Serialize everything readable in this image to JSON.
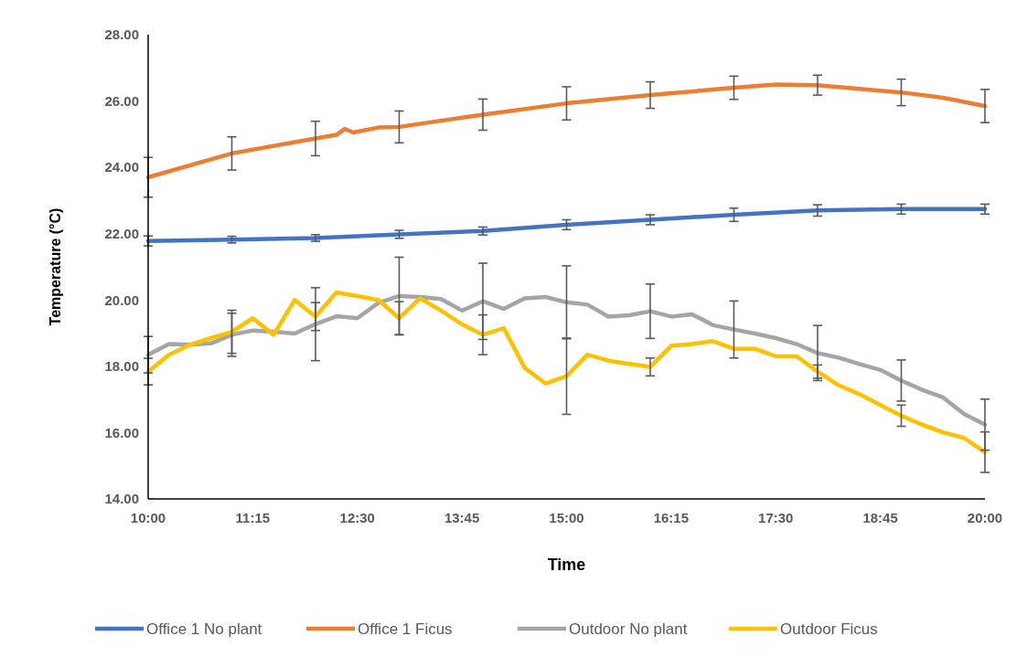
{
  "chart_data": {
    "type": "line",
    "xlabel": "Time",
    "ylabel": "Temperature (°C)",
    "legend": "bottom",
    "xlim": [
      10,
      20
    ],
    "xticks": [
      {
        "value": 10,
        "label": "10:00"
      },
      {
        "value": 11.25,
        "label": "11:15"
      },
      {
        "value": 12.5,
        "label": "12:30"
      },
      {
        "value": 13.75,
        "label": "13:45"
      },
      {
        "value": 15,
        "label": "15:00"
      },
      {
        "value": 16.25,
        "label": "16:15"
      },
      {
        "value": 17.5,
        "label": "17:30"
      },
      {
        "value": 18.75,
        "label": "18:45"
      },
      {
        "value": 20,
        "label": "20:00"
      }
    ],
    "ylim": [
      14,
      28
    ],
    "yticks": [
      {
        "value": 14,
        "label": "14.00"
      },
      {
        "value": 16,
        "label": "16.00"
      },
      {
        "value": 18,
        "label": "18.00"
      },
      {
        "value": 20,
        "label": "20.00"
      },
      {
        "value": 22,
        "label": "22.00"
      },
      {
        "value": 24,
        "label": "24.00"
      },
      {
        "value": 26,
        "label": "26.00"
      },
      {
        "value": 28,
        "label": "28.00"
      }
    ],
    "x": [
      10,
      10.25,
      10.5,
      10.75,
      11,
      11.25,
      11.5,
      11.75,
      12,
      12.25,
      12.5,
      12.75,
      13,
      13.25,
      13.5,
      13.75,
      14,
      14.25,
      14.5,
      14.75,
      15,
      15.25,
      15.5,
      15.75,
      16,
      16.25,
      16.5,
      16.75,
      17,
      17.25,
      17.5,
      17.75,
      18,
      18.25,
      18.5,
      18.75,
      19,
      19.25,
      19.5,
      19.75,
      20
    ],
    "series": [
      {
        "name": "Office 1 No plant",
        "color": "#4472c4",
        "x": [
          10,
          11,
          12,
          13,
          14,
          15,
          16,
          17,
          18,
          19,
          20
        ],
        "values": [
          21.78,
          21.82,
          21.87,
          21.98,
          22.08,
          22.27,
          22.42,
          22.57,
          22.7,
          22.74,
          22.74
        ],
        "errors": [
          0.15,
          0.1,
          0.1,
          0.12,
          0.12,
          0.15,
          0.15,
          0.2,
          0.17,
          0.15,
          0.15
        ]
      },
      {
        "name": "Office 1 Ficus",
        "color": "#ed7d31",
        "x": [
          10,
          11,
          12,
          12.25,
          12.35,
          12.45,
          12.75,
          13,
          14,
          15,
          16,
          17,
          17.5,
          18,
          18.5,
          19,
          19.5,
          20
        ],
        "values": [
          23.7,
          24.42,
          24.87,
          24.98,
          25.16,
          25.05,
          25.2,
          25.22,
          25.59,
          25.93,
          26.18,
          26.4,
          26.5,
          26.48,
          26.37,
          26.26,
          26.1,
          25.85
        ],
        "errors": [
          0.6,
          0.5,
          0.52,
          null,
          null,
          null,
          null,
          0.48,
          0.47,
          0.5,
          0.4,
          0.35,
          null,
          0.3,
          null,
          0.4,
          null,
          0.5
        ]
      },
      {
        "name": "Outdoor No plant",
        "color": "#a5a5a5",
        "values": [
          18.35,
          18.67,
          18.65,
          18.69,
          18.95,
          19.08,
          19.04,
          18.99,
          19.27,
          19.51,
          19.45,
          19.91,
          20.12,
          20.09,
          20.03,
          19.68,
          19.96,
          19.73,
          20.05,
          20.09,
          19.93,
          19.86,
          19.5,
          19.54,
          19.66,
          19.5,
          19.57,
          19.24,
          19.11,
          18.99,
          18.85,
          18.67,
          18.4,
          18.26,
          18.07,
          17.89,
          17.57,
          17.29,
          17.06,
          16.56,
          16.24
        ],
        "errors": [
          0.55,
          null,
          null,
          null,
          0.65,
          null,
          null,
          null,
          1.1,
          null,
          null,
          null,
          1.17,
          null,
          null,
          null,
          1.15,
          null,
          null,
          null,
          1.1,
          null,
          null,
          null,
          0.82,
          null,
          null,
          null,
          0.86,
          null,
          null,
          null,
          0.83,
          null,
          null,
          null,
          0.62,
          null,
          null,
          null,
          0.77
        ]
      },
      {
        "name": "Outdoor Ficus",
        "color": "#ffc000",
        "values": [
          17.84,
          18.35,
          18.65,
          18.85,
          19.04,
          19.45,
          18.95,
          20.0,
          19.5,
          20.23,
          20.12,
          20.0,
          19.45,
          20.05,
          19.68,
          19.27,
          18.95,
          19.15,
          17.95,
          17.48,
          17.7,
          18.35,
          18.17,
          18.07,
          17.98,
          18.62,
          18.67,
          18.76,
          18.53,
          18.53,
          18.3,
          18.3,
          17.84,
          17.43,
          17.16,
          16.83,
          16.51,
          16.24,
          16.01,
          15.84,
          15.41
        ],
        "errors": [
          0.4,
          null,
          null,
          null,
          0.65,
          null,
          null,
          null,
          0.42,
          null,
          null,
          null,
          0.5,
          null,
          null,
          null,
          0.6,
          null,
          null,
          null,
          1.15,
          null,
          null,
          null,
          0.27,
          null,
          null,
          null,
          null,
          null,
          null,
          null,
          0.2,
          null,
          null,
          null,
          0.32,
          null,
          null,
          null,
          0.61
        ]
      }
    ]
  }
}
